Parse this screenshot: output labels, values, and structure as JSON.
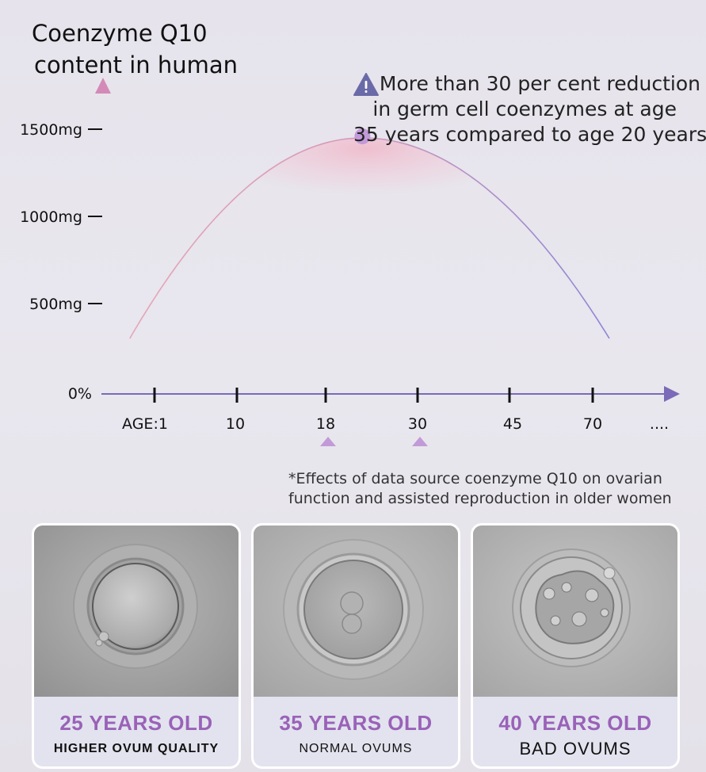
{
  "chart_data": {
    "type": "line",
    "title_lines": [
      "Coenzyme Q10",
      "content in human"
    ],
    "y_ticks": [
      {
        "label": "1500mg",
        "value": 1500
      },
      {
        "label": "1000mg",
        "value": 1000
      },
      {
        "label": "500mg",
        "value": 500
      },
      {
        "label": "0%",
        "value": 0
      }
    ],
    "x_ticks": [
      "AGE:1",
      "10",
      "18",
      "30",
      "45",
      "70",
      "...."
    ],
    "highlighted_x_ticks": [
      "18",
      "30"
    ],
    "ylim": [
      0,
      1750
    ],
    "curve": {
      "shape": "rise-then-fall",
      "start_value": 300,
      "peak_value": 1450,
      "end_value": 300,
      "peak_index": 2.4,
      "start_index": -0.3,
      "end_index": 5.2
    },
    "peak_marker": true,
    "annotation_lines": [
      "More than 30 per cent reduction",
      "in germ cell coenzymes at age",
      "35 years compared to age 20 years"
    ],
    "source_lines": [
      "*Effects of data source coenzyme Q10 on ovarian",
      "function and assisted reproduction in older women"
    ],
    "colors": {
      "axis": "#9a7ac0",
      "curve_start": "#e6a6b6",
      "curve_end": "#8c86d6",
      "marker": "#c29ad8",
      "fill": "#f3b8c8",
      "warning": "#6b6aa8"
    }
  },
  "cards": [
    {
      "age": "25 YEARS OLD",
      "quality": "HIGHER OVUM QUALITY",
      "icon": "ovum-healthy-image"
    },
    {
      "age": "35 YEARS OLD",
      "quality": "NORMAL OVUMS",
      "icon": "ovum-normal-image"
    },
    {
      "age": "40 YEARS OLD",
      "quality": "BAD OVUMS",
      "icon": "ovum-bad-image"
    }
  ]
}
